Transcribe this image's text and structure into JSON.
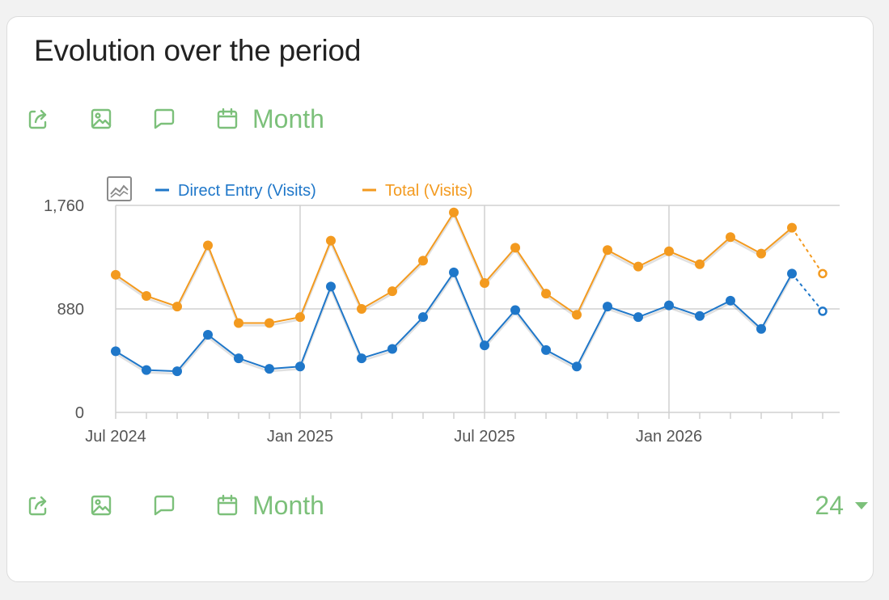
{
  "widget": {
    "title": "Evolution over the period",
    "period_label": "Month",
    "limit_value": "24"
  },
  "icons": {
    "export": "export-icon",
    "image": "image-icon",
    "annotations": "comment-icon",
    "calendar": "calendar-icon",
    "metric_picker": "line-chart-icon",
    "dropdown": "caret-down-icon"
  },
  "colors": {
    "accent": "#7cc07a",
    "direct": "#1f77c9",
    "total": "#f39a1f",
    "grid": "#d0d0d0"
  },
  "chart_data": {
    "type": "line",
    "title": "",
    "xlabel": "",
    "ylabel": "",
    "ylim": [
      0,
      1760
    ],
    "y_ticks": [
      "0",
      "880",
      "1,760"
    ],
    "y_tick_values": [
      0,
      880,
      1760
    ],
    "x_tick_labels": [
      "Jul 2024",
      "Jan 2025",
      "Jul 2025",
      "Jan 2026"
    ],
    "x_tick_indices": [
      0,
      6,
      12,
      18
    ],
    "categories": [
      "Jul 2024",
      "Aug 2024",
      "Sep 2024",
      "Oct 2024",
      "Nov 2024",
      "Dec 2024",
      "Jan 2025",
      "Feb 2025",
      "Mar 2025",
      "Apr 2025",
      "May 2025",
      "Jun 2025",
      "Jul 2025",
      "Aug 2025",
      "Sep 2025",
      "Oct 2025",
      "Nov 2025",
      "Dec 2025",
      "Jan 2026",
      "Feb 2026",
      "Mar 2026",
      "Apr 2026",
      "May 2026",
      "Jun 2026"
    ],
    "grid": true,
    "legend_position": "top-left",
    "last_point_incomplete": true,
    "series": [
      {
        "name": "Direct Entry (Visits)",
        "color": "#1f77c9",
        "values": [
          520,
          360,
          350,
          660,
          460,
          370,
          390,
          1070,
          460,
          540,
          810,
          1190,
          570,
          870,
          530,
          390,
          900,
          810,
          910,
          820,
          950,
          710,
          1180,
          860
        ]
      },
      {
        "name": "Total (Visits)",
        "color": "#f39a1f",
        "values": [
          1170,
          990,
          900,
          1420,
          760,
          760,
          810,
          1460,
          880,
          1030,
          1290,
          1700,
          1100,
          1400,
          1010,
          830,
          1380,
          1240,
          1370,
          1260,
          1490,
          1350,
          1570,
          1180
        ]
      }
    ]
  }
}
